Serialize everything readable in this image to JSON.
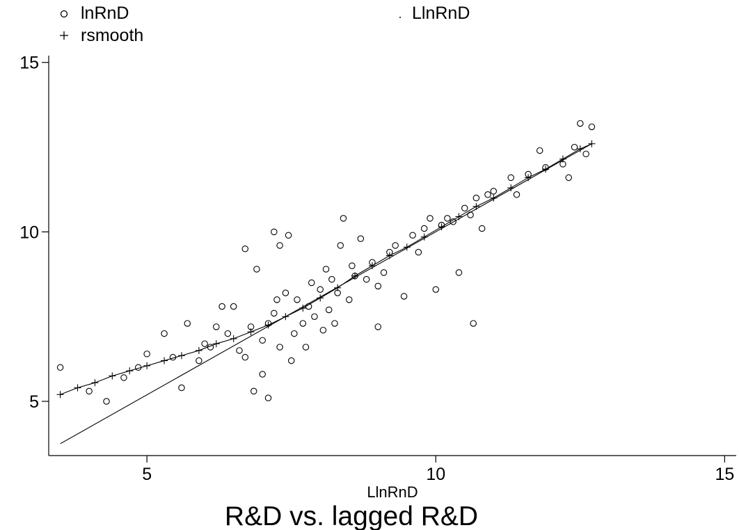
{
  "chart_data": {
    "type": "scatter",
    "title": "R&D vs. lagged R&D",
    "xlabel": "LlnRnD",
    "ylabel": "",
    "xlim": [
      3.3,
      15.2
    ],
    "ylim": [
      3.4,
      15.2
    ],
    "xticks": [
      5,
      10,
      15
    ],
    "yticks": [
      5,
      10,
      15
    ],
    "grid": false,
    "legend_position": "top",
    "series": [
      {
        "name": "lnRnD",
        "marker": "circle",
        "points": [
          [
            3.5,
            6.0
          ],
          [
            4.0,
            5.3
          ],
          [
            4.3,
            5.0
          ],
          [
            4.6,
            5.7
          ],
          [
            4.85,
            6.0
          ],
          [
            5.0,
            6.4
          ],
          [
            5.3,
            7.0
          ],
          [
            5.6,
            5.4
          ],
          [
            5.7,
            7.3
          ],
          [
            5.9,
            6.2
          ],
          [
            6.2,
            7.2
          ],
          [
            6.3,
            7.8
          ],
          [
            6.5,
            7.8
          ],
          [
            6.6,
            6.5
          ],
          [
            6.7,
            6.3
          ],
          [
            6.8,
            7.2
          ],
          [
            6.85,
            5.3
          ],
          [
            6.9,
            8.9
          ],
          [
            7.0,
            5.8
          ],
          [
            7.0,
            6.8
          ],
          [
            7.1,
            7.3
          ],
          [
            7.2,
            7.6
          ],
          [
            7.25,
            8.0
          ],
          [
            7.3,
            6.6
          ],
          [
            7.4,
            8.2
          ],
          [
            7.45,
            9.9
          ],
          [
            7.5,
            6.2
          ],
          [
            7.55,
            7.0
          ],
          [
            7.6,
            8.0
          ],
          [
            7.7,
            7.3
          ],
          [
            7.75,
            6.6
          ],
          [
            7.8,
            7.8
          ],
          [
            7.85,
            8.5
          ],
          [
            7.9,
            7.5
          ],
          [
            8.0,
            8.3
          ],
          [
            8.05,
            7.1
          ],
          [
            8.1,
            8.9
          ],
          [
            8.15,
            7.7
          ],
          [
            8.2,
            8.6
          ],
          [
            8.25,
            7.3
          ],
          [
            8.3,
            8.2
          ],
          [
            8.35,
            9.6
          ],
          [
            8.4,
            10.4
          ],
          [
            8.5,
            8.0
          ],
          [
            8.55,
            9.0
          ],
          [
            8.6,
            8.7
          ],
          [
            8.7,
            9.8
          ],
          [
            8.8,
            8.6
          ],
          [
            8.9,
            9.1
          ],
          [
            9.0,
            7.2
          ],
          [
            9.1,
            8.8
          ],
          [
            9.2,
            9.4
          ],
          [
            9.3,
            9.6
          ],
          [
            9.45,
            8.1
          ],
          [
            9.6,
            9.9
          ],
          [
            9.7,
            9.4
          ],
          [
            9.8,
            10.1
          ],
          [
            9.9,
            10.4
          ],
          [
            10.0,
            8.3
          ],
          [
            10.1,
            10.2
          ],
          [
            10.2,
            10.4
          ],
          [
            10.3,
            10.3
          ],
          [
            10.4,
            8.8
          ],
          [
            10.5,
            10.7
          ],
          [
            10.6,
            10.5
          ],
          [
            10.65,
            7.3
          ],
          [
            10.7,
            11.0
          ],
          [
            10.8,
            10.1
          ],
          [
            10.9,
            11.1
          ],
          [
            11.0,
            11.2
          ],
          [
            11.3,
            11.6
          ],
          [
            11.4,
            11.1
          ],
          [
            11.6,
            11.7
          ],
          [
            11.8,
            12.4
          ],
          [
            11.9,
            11.9
          ],
          [
            12.2,
            12.0
          ],
          [
            12.3,
            11.6
          ],
          [
            12.4,
            12.5
          ],
          [
            12.5,
            13.2
          ],
          [
            12.6,
            12.3
          ],
          [
            12.7,
            13.1
          ],
          [
            7.1,
            5.1
          ],
          [
            6.7,
            9.5
          ],
          [
            7.2,
            10.0
          ],
          [
            7.3,
            9.6
          ],
          [
            6.0,
            6.7
          ],
          [
            6.4,
            7.0
          ],
          [
            5.45,
            6.3
          ],
          [
            6.1,
            6.6
          ],
          [
            9.0,
            8.4
          ]
        ]
      },
      {
        "name": "LlnRnD",
        "marker": "dot",
        "points": [
          [
            3.5,
            3.75
          ],
          [
            12.7,
            12.6
          ]
        ]
      },
      {
        "name": "rsmooth",
        "marker": "plus",
        "points": [
          [
            3.5,
            5.2
          ],
          [
            3.8,
            5.4
          ],
          [
            4.1,
            5.55
          ],
          [
            4.4,
            5.75
          ],
          [
            4.7,
            5.9
          ],
          [
            5.0,
            6.05
          ],
          [
            5.3,
            6.2
          ],
          [
            5.6,
            6.35
          ],
          [
            5.9,
            6.5
          ],
          [
            6.2,
            6.7
          ],
          [
            6.5,
            6.85
          ],
          [
            6.8,
            7.05
          ],
          [
            7.1,
            7.25
          ],
          [
            7.4,
            7.5
          ],
          [
            7.7,
            7.75
          ],
          [
            8.0,
            8.05
          ],
          [
            8.3,
            8.35
          ],
          [
            8.6,
            8.7
          ],
          [
            8.9,
            9.0
          ],
          [
            9.2,
            9.3
          ],
          [
            9.5,
            9.55
          ],
          [
            9.8,
            9.85
          ],
          [
            10.1,
            10.15
          ],
          [
            10.4,
            10.45
          ],
          [
            10.7,
            10.75
          ],
          [
            11.0,
            11.0
          ],
          [
            11.3,
            11.3
          ],
          [
            11.6,
            11.6
          ],
          [
            11.9,
            11.85
          ],
          [
            12.2,
            12.15
          ],
          [
            12.5,
            12.45
          ],
          [
            12.7,
            12.6
          ]
        ]
      }
    ]
  }
}
